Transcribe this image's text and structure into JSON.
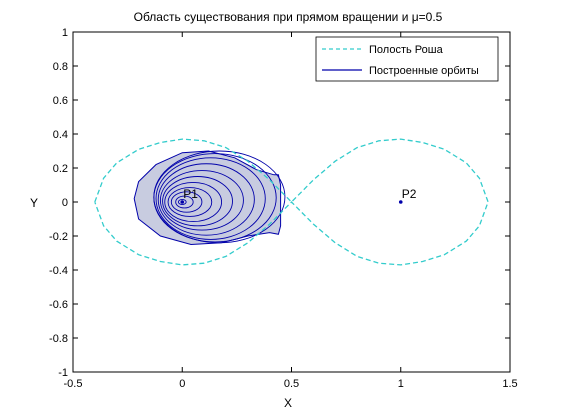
{
  "chart_data": {
    "type": "line",
    "title": "Область существования при прямом вращении и μ=0.5",
    "xlabel": "X",
    "ylabel": "Y",
    "xlim": [
      -0.5,
      1.5
    ],
    "ylim": [
      -1,
      1
    ],
    "xticks": [
      -0.5,
      0,
      0.5,
      1,
      1.5
    ],
    "xtick_labels": [
      "-0.5",
      "0",
      "0.5",
      "1",
      "1.5"
    ],
    "yticks": [
      -1,
      -0.8,
      -0.6,
      -0.4,
      -0.2,
      0,
      0.2,
      0.4,
      0.6,
      0.8,
      1
    ],
    "ytick_labels": [
      "-1",
      "-0.8",
      "-0.6",
      "-0.4",
      "-0.2",
      "0",
      "0.2",
      "0.4",
      "0.6",
      "0.8",
      "1"
    ],
    "grid": false,
    "legend_position": "top-right",
    "colors": {
      "roche": "#33cccc",
      "orbits": "#0000aa",
      "fill": "#c8cce0",
      "points": "#0000aa"
    },
    "series": [
      {
        "name": "Полость Роша",
        "style": "dashed",
        "x": [
          -0.4,
          -0.36,
          -0.3,
          -0.2,
          -0.1,
          0.0,
          0.1,
          0.2,
          0.3,
          0.4,
          0.5,
          0.6,
          0.7,
          0.8,
          0.9,
          1.0,
          1.1,
          1.2,
          1.3,
          1.36,
          1.4,
          1.36,
          1.3,
          1.2,
          1.1,
          1.0,
          0.9,
          0.8,
          0.7,
          0.6,
          0.5,
          0.4,
          0.3,
          0.2,
          0.1,
          0.0,
          -0.1,
          -0.2,
          -0.3,
          -0.36,
          -0.4
        ],
        "y": [
          0.0,
          0.14,
          0.23,
          0.31,
          0.35,
          0.37,
          0.36,
          0.32,
          0.24,
          0.13,
          0.0,
          0.13,
          0.24,
          0.32,
          0.36,
          0.37,
          0.35,
          0.31,
          0.23,
          0.14,
          0.0,
          -0.14,
          -0.23,
          -0.31,
          -0.35,
          -0.37,
          -0.36,
          -0.32,
          -0.24,
          -0.13,
          0.0,
          -0.13,
          -0.24,
          -0.32,
          -0.36,
          -0.37,
          -0.35,
          -0.31,
          -0.23,
          -0.14,
          0.0
        ]
      },
      {
        "name": "Построенные орбиты",
        "style": "solid",
        "region": {
          "x": [
            -0.22,
            -0.2,
            -0.12,
            0.0,
            0.12,
            0.24,
            0.34,
            0.42,
            0.44,
            0.45,
            0.45,
            0.44,
            0.4,
            0.3,
            0.18,
            0.04,
            -0.1,
            -0.2,
            -0.22
          ],
          "y": [
            0.02,
            0.12,
            0.22,
            0.29,
            0.3,
            0.26,
            0.19,
            0.16,
            0.16,
            0.1,
            -0.14,
            -0.19,
            -0.18,
            -0.2,
            -0.24,
            -0.25,
            -0.2,
            -0.1,
            0.02
          ]
        },
        "orbits": [
          {
            "cx": 0.0,
            "cy": 0.0,
            "rx": 0.018,
            "ry": 0.015
          },
          {
            "cx": 0.01,
            "cy": 0.0,
            "rx": 0.04,
            "ry": 0.035
          },
          {
            "cx": 0.02,
            "cy": 0.0,
            "rx": 0.07,
            "ry": 0.06
          },
          {
            "cx": 0.035,
            "cy": 0.0,
            "rx": 0.1,
            "ry": 0.085
          },
          {
            "cx": 0.05,
            "cy": 0.0,
            "rx": 0.13,
            "ry": 0.115
          },
          {
            "cx": 0.07,
            "cy": 0.005,
            "rx": 0.16,
            "ry": 0.145
          },
          {
            "cx": 0.09,
            "cy": 0.01,
            "rx": 0.19,
            "ry": 0.175
          },
          {
            "cx": 0.11,
            "cy": 0.015,
            "rx": 0.22,
            "ry": 0.21
          },
          {
            "cx": 0.13,
            "cy": 0.02,
            "rx": 0.25,
            "ry": 0.24
          },
          {
            "cx": 0.15,
            "cy": 0.025,
            "rx": 0.28,
            "ry": 0.26
          },
          {
            "cx": 0.17,
            "cy": 0.03,
            "rx": 0.3,
            "ry": 0.27
          }
        ]
      }
    ],
    "points": [
      {
        "label": "P1",
        "x": 0.0,
        "y": 0.0
      },
      {
        "label": "P2",
        "x": 1.0,
        "y": 0.0
      }
    ]
  }
}
